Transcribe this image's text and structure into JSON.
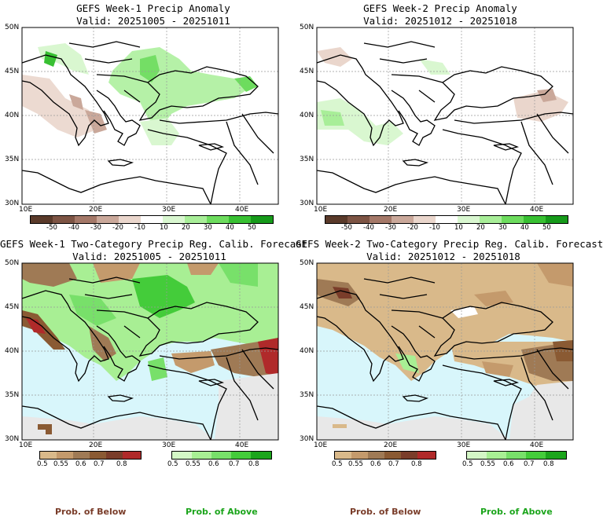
{
  "panels": [
    {
      "title": "GEFS Week-1 Precip Anomaly",
      "valid": "Valid: 20251005 - 20251011"
    },
    {
      "title": "GEFS Week-2 Precip Anomaly",
      "valid": "Valid: 20251012 - 20251018"
    },
    {
      "title": "GEFS Week-1 Two-Category Precip Reg. Calib. Forecast",
      "valid": "Valid: 20251005 - 20251011"
    },
    {
      "title": "GEFS Week-2 Two-Category Precip Reg. Calib. Forecast",
      "valid": "Valid: 20251012 - 20251018"
    }
  ],
  "axes": {
    "lat": [
      "50N",
      "45N",
      "40N",
      "35N",
      "30N"
    ],
    "lon": [
      "10E",
      "20E",
      "30E",
      "40E"
    ]
  },
  "anomaly_colorbar": {
    "ticks": [
      "-50",
      "-40",
      "-30",
      "-20",
      "-10",
      "10",
      "20",
      "30",
      "40",
      "50"
    ],
    "colors": [
      "#5a3a2a",
      "#7d5444",
      "#a47868",
      "#caa89a",
      "#ead6cc",
      "#ffffff",
      "#d9f7d0",
      "#a8ee98",
      "#6ddc5e",
      "#38c032",
      "#169a1a"
    ]
  },
  "below_colorbar": {
    "ticks": [
      "0.5",
      "0.55",
      "0.6",
      "0.7",
      "0.8"
    ],
    "colors": [
      "#d9b98a",
      "#c49a6c",
      "#9f7a55",
      "#8a5a33",
      "#7a3d2a",
      "#b02a2a"
    ],
    "label": "Prob. of Below"
  },
  "above_colorbar": {
    "ticks": [
      "0.5",
      "0.55",
      "0.6",
      "0.7",
      "0.8"
    ],
    "colors": [
      "#d4f7c6",
      "#a8ef94",
      "#78e06a",
      "#44cc3a",
      "#1ca51c"
    ],
    "label": "Prob. of Above"
  },
  "colors": {
    "sea": "#d8f6fb",
    "land_gray": "#e8e8e8",
    "below": "#c8a074",
    "above": "#6fdc5c"
  }
}
